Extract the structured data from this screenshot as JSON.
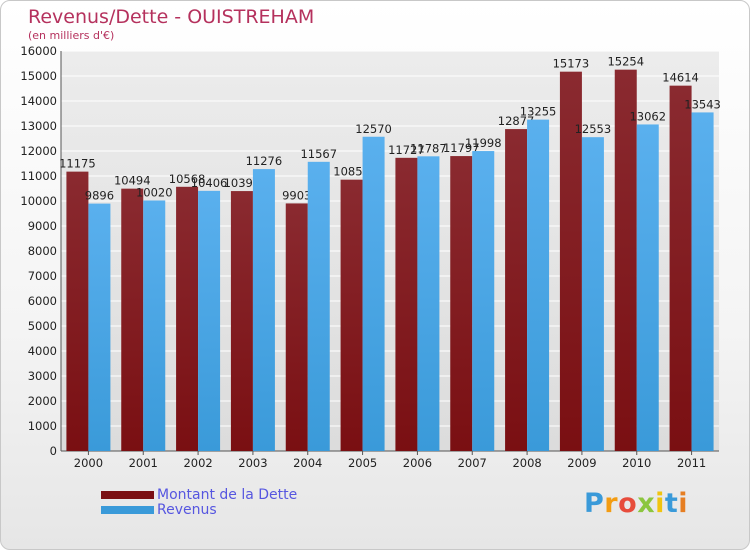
{
  "title": "Revenus/Dette - OUISTREHAM",
  "subtitle": "(en milliers d'€)",
  "legend": {
    "debt_label": "Montant de la Dette",
    "revenue_label": "Revenus"
  },
  "logo": {
    "letters": [
      "P",
      "r",
      "o",
      "x",
      "i",
      "t",
      "i"
    ],
    "colors": [
      "#3a9ad9",
      "#f39c12",
      "#e74c3c",
      "#8cc63f",
      "#f1c40f",
      "#3a9ad9",
      "#e67e22"
    ]
  },
  "colors": {
    "debt": "#7a0f12",
    "revenue": "#3a9ad9",
    "title": "#b5315d",
    "legend_text": "#5656e0"
  },
  "chart_data": {
    "type": "bar",
    "categories": [
      "2000",
      "2001",
      "2002",
      "2003",
      "2004",
      "2005",
      "2006",
      "2007",
      "2008",
      "2009",
      "2010",
      "2011"
    ],
    "series": [
      {
        "name": "Montant de la Dette",
        "values": [
          11175,
          10494,
          10568,
          10397,
          9903,
          10853,
          11727,
          11797,
          12877,
          15173,
          15254,
          14614
        ]
      },
      {
        "name": "Revenus",
        "values": [
          9896,
          10020,
          10406,
          11276,
          11567,
          12570,
          11787,
          11998,
          13255,
          12553,
          13062,
          13543
        ]
      }
    ],
    "data_labels": [
      [
        "11175",
        "10494",
        "10568",
        "10397",
        "9903",
        "10853",
        "11727",
        "11797",
        "12877",
        "15173",
        "15254",
        "14614"
      ],
      [
        "9896",
        "10020",
        "10406",
        "11276",
        "11567",
        "12570",
        "11787",
        "11998",
        "13255",
        "12553",
        "13062",
        "13543"
      ]
    ],
    "ylim": [
      0,
      16000
    ],
    "yticks": [
      0,
      1000,
      2000,
      3000,
      4000,
      5000,
      6000,
      7000,
      8000,
      9000,
      10000,
      11000,
      12000,
      13000,
      14000,
      15000,
      16000
    ],
    "grid": true,
    "legend_position": "bottom-left"
  }
}
